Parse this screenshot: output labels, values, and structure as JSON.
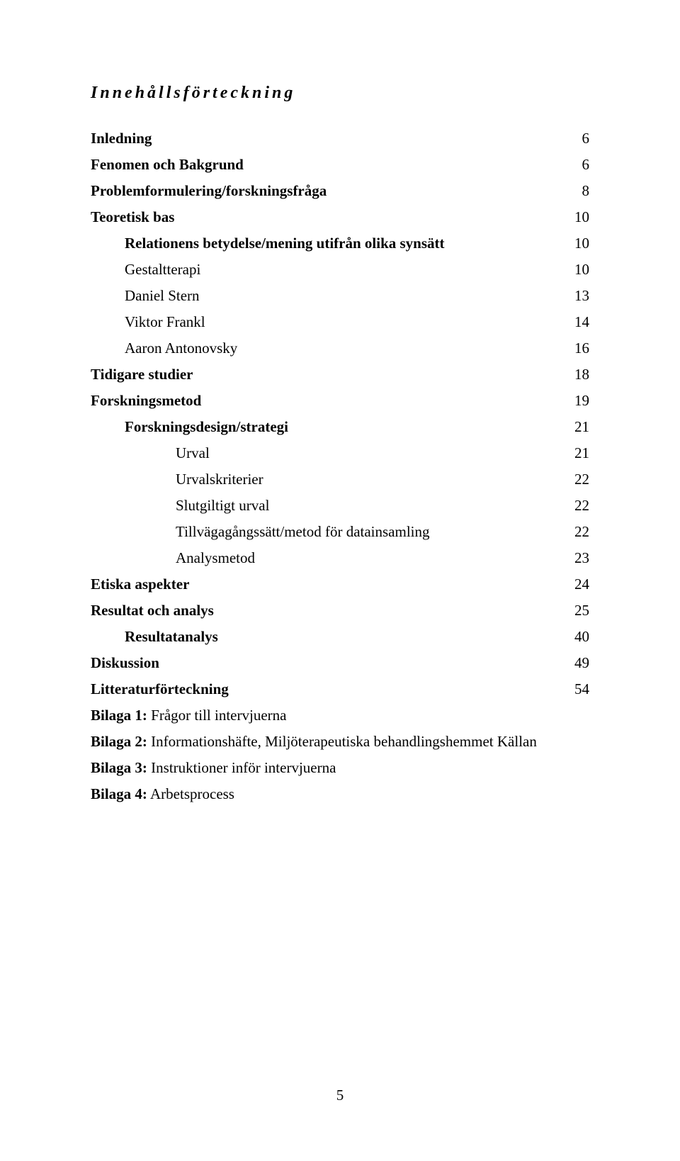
{
  "title": "Innehållsförteckning",
  "entries": [
    {
      "label": "Inledning",
      "page": "6",
      "bold": true,
      "indent": 0
    },
    {
      "label": "Fenomen och Bakgrund",
      "page": "6",
      "bold": true,
      "indent": 0
    },
    {
      "label": "Problemformulering/forskningsfråga",
      "page": "8",
      "bold": true,
      "indent": 0
    },
    {
      "label": "Teoretisk bas",
      "page": "10",
      "bold": true,
      "indent": 0
    },
    {
      "label": "Relationens betydelse/mening utifrån olika synsätt",
      "page": "10",
      "bold": true,
      "indent": 1
    },
    {
      "label": "Gestaltterapi",
      "page": "10",
      "bold": false,
      "indent": 1
    },
    {
      "label": "Daniel Stern",
      "page": "13",
      "bold": false,
      "indent": 1
    },
    {
      "label": "Viktor Frankl",
      "page": "14",
      "bold": false,
      "indent": 1
    },
    {
      "label": "Aaron Antonovsky",
      "page": "16",
      "bold": false,
      "indent": 1
    },
    {
      "label": "Tidigare studier",
      "page": "18",
      "bold": true,
      "indent": 0
    },
    {
      "label": "Forskningsmetod",
      "page": "19",
      "bold": true,
      "indent": 0
    },
    {
      "label": "Forskningsdesign/strategi",
      "page": "21",
      "bold": true,
      "indent": 1
    },
    {
      "label": "Urval",
      "page": "21",
      "bold": false,
      "indent": 2
    },
    {
      "label": "Urvalskriterier",
      "page": "22",
      "bold": false,
      "indent": 2
    },
    {
      "label": "Slutgiltigt urval",
      "page": "22",
      "bold": false,
      "indent": 2
    },
    {
      "label": "Tillvägagångssätt/metod för datainsamling",
      "page": "22",
      "bold": false,
      "indent": 2
    },
    {
      "label": "Analysmetod",
      "page": "23",
      "bold": false,
      "indent": 2
    },
    {
      "label": "Etiska aspekter",
      "page": "24",
      "bold": true,
      "indent": 0
    },
    {
      "label": "Resultat och analys",
      "page": "25",
      "bold": true,
      "indent": 0
    },
    {
      "label": "Resultatanalys",
      "page": "40",
      "bold": true,
      "indent": 1
    },
    {
      "label": "Diskussion",
      "page": "49",
      "bold": true,
      "indent": 0
    },
    {
      "label": "Litteraturförteckning",
      "page": "54",
      "bold": true,
      "indent": 0
    },
    {
      "label": "Bilaga 1: Frågor till intervjuerna",
      "page": "",
      "bold": true,
      "indent": 0,
      "boldPrefix": "Bilaga 1:",
      "rest": " Frågor till intervjuerna"
    },
    {
      "label": "Bilaga 2: Informationshäfte, Miljöterapeutiska behandlingshemmet Källan",
      "page": "",
      "bold": true,
      "indent": 0,
      "boldPrefix": "Bilaga 2:",
      "rest": " Informationshäfte, Miljöterapeutiska behandlingshemmet Källan"
    },
    {
      "label": "Bilaga 3: Instruktioner inför intervjuerna",
      "page": "",
      "bold": true,
      "indent": 0,
      "boldPrefix": "Bilaga 3:",
      "rest": " Instruktioner inför intervjuerna"
    },
    {
      "label": "Bilaga 4: Arbetsprocess",
      "page": "",
      "bold": true,
      "indent": 0,
      "boldPrefix": "Bilaga 4:",
      "rest": " Arbetsprocess"
    }
  ],
  "footerPage": "5"
}
